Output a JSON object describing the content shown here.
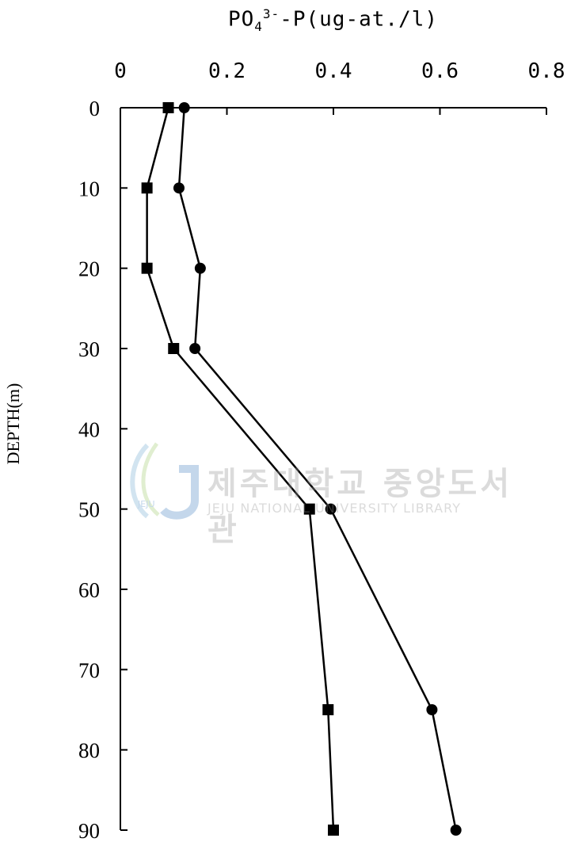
{
  "chart_data": {
    "type": "line",
    "title_base": "PO",
    "title_sub": "4",
    "title_sup": "3-",
    "title_rest": "-P(ug-at./l)",
    "xlabel": "PO4 3- -P(ug-at./l)",
    "ylabel": "DEPTH(m)",
    "xlim": [
      0,
      0.8
    ],
    "ylim": [
      0,
      90
    ],
    "y_inverted": true,
    "x_axis_position": "top",
    "x_ticks": [
      0,
      0.2,
      0.4,
      0.6,
      0.8
    ],
    "x_tick_labels": [
      "0",
      "0.2",
      "0.4",
      "0.6",
      "0.8"
    ],
    "y_ticks": [
      0,
      10,
      20,
      30,
      40,
      50,
      60,
      70,
      80,
      90
    ],
    "y_tick_labels": [
      "0",
      "10",
      "20",
      "30",
      "40",
      "50",
      "60",
      "70",
      "80",
      "90"
    ],
    "grid": false,
    "series": [
      {
        "marker": "square",
        "color": "#000000",
        "points": [
          {
            "x": 0.09,
            "y": 0
          },
          {
            "x": 0.05,
            "y": 10
          },
          {
            "x": 0.05,
            "y": 20
          },
          {
            "x": 0.1,
            "y": 30
          },
          {
            "x": 0.355,
            "y": 50
          },
          {
            "x": 0.39,
            "y": 75
          },
          {
            "x": 0.4,
            "y": 90
          }
        ]
      },
      {
        "marker": "circle",
        "color": "#000000",
        "points": [
          {
            "x": 0.12,
            "y": 0
          },
          {
            "x": 0.11,
            "y": 10
          },
          {
            "x": 0.15,
            "y": 20
          },
          {
            "x": 0.14,
            "y": 30
          },
          {
            "x": 0.395,
            "y": 50
          },
          {
            "x": 0.585,
            "y": 75
          },
          {
            "x": 0.63,
            "y": 90
          }
        ]
      }
    ]
  },
  "watermark": {
    "main": "제주대학교 중앙도서관",
    "sub": "JEJU NATIONAL UNIVERSITY LIBRARY",
    "logo_text": "JEJU"
  }
}
